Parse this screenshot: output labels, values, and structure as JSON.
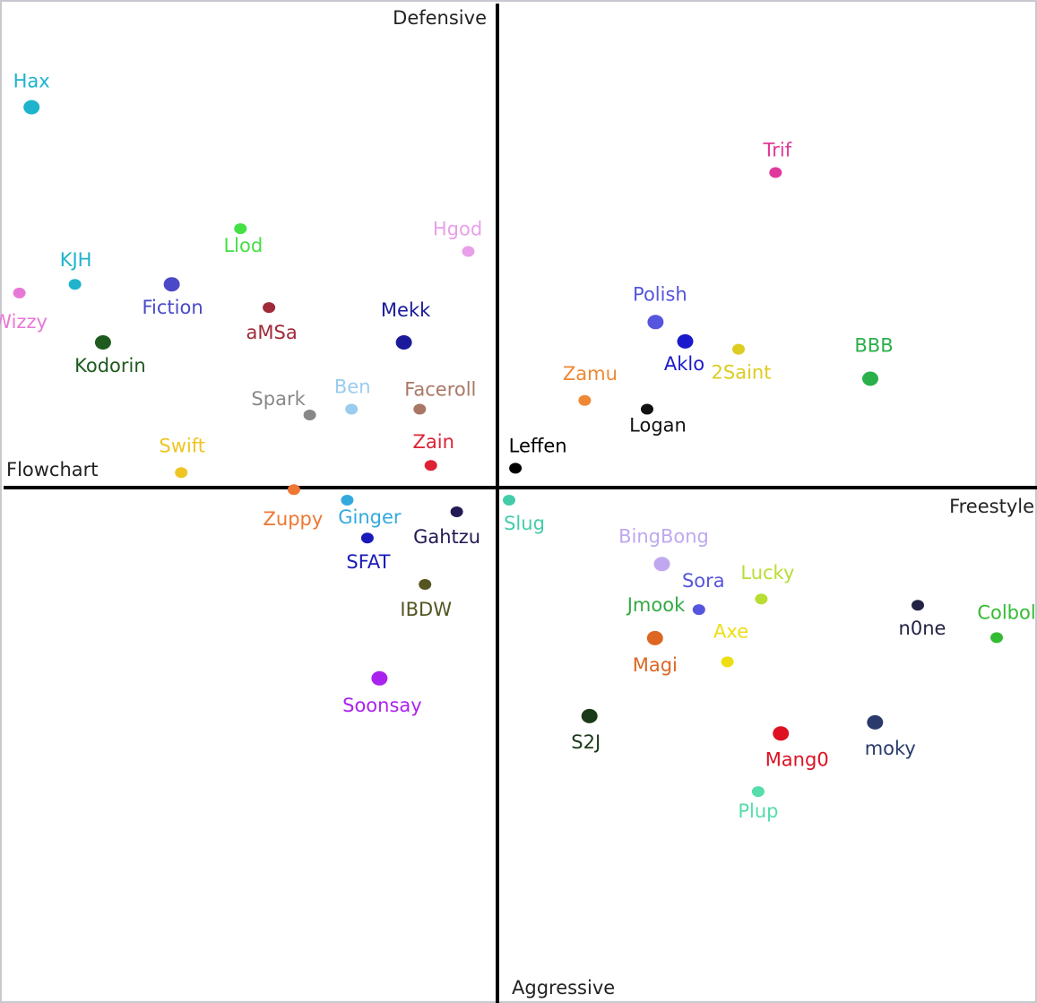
{
  "chart_data": {
    "type": "scatter",
    "title": "",
    "xlabel": "",
    "ylabel": "",
    "axes": {
      "x_negative": "Flowchart",
      "x_positive": "Freestyle",
      "y_positive": "Defensive",
      "y_negative": "Aggressive"
    },
    "xlim": [
      -1,
      1
    ],
    "ylim": [
      -1,
      1
    ],
    "grid": false,
    "points": [
      {
        "label": "Hax",
        "x": -0.881,
        "y": 0.786,
        "color": "#1fb3cc"
      },
      {
        "label": "Trif",
        "x": 0.526,
        "y": 0.651,
        "color": "#e0389a"
      },
      {
        "label": "Llod",
        "x": -0.486,
        "y": 0.535,
        "color": "#44e044"
      },
      {
        "label": "Hgod",
        "x": -0.055,
        "y": 0.488,
        "color": "#e8a0e8"
      },
      {
        "label": "KJH",
        "x": -0.799,
        "y": 0.42,
        "color": "#1fb3cc"
      },
      {
        "label": "Wizzy",
        "x": -0.904,
        "y": 0.402,
        "color": "#e878d8"
      },
      {
        "label": "Fiction",
        "x": -0.616,
        "y": 0.42,
        "color": "#4a4ac8"
      },
      {
        "label": "aMSa",
        "x": -0.432,
        "y": 0.372,
        "color": "#a02a3a"
      },
      {
        "label": "Mekk",
        "x": -0.177,
        "y": 0.3,
        "color": "#1a1a9a"
      },
      {
        "label": "Kodorin",
        "x": -0.746,
        "y": 0.3,
        "color": "#1e5a1e"
      },
      {
        "label": "Polish",
        "x": 0.299,
        "y": 0.342,
        "color": "#5555dd"
      },
      {
        "label": "Aklo",
        "x": 0.355,
        "y": 0.302,
        "color": "#1a1acc"
      },
      {
        "label": "2Saint",
        "x": 0.456,
        "y": 0.286,
        "color": "#ddcc22"
      },
      {
        "label": "BBB",
        "x": 0.705,
        "y": 0.225,
        "color": "#2ab04a"
      },
      {
        "label": "Zamu",
        "x": 0.165,
        "y": 0.18,
        "color": "#ee8833"
      },
      {
        "label": "Logan",
        "x": 0.283,
        "y": 0.162,
        "color": "#111111"
      },
      {
        "label": "Spark",
        "x": -0.355,
        "y": 0.15,
        "color": "#888888"
      },
      {
        "label": "Ben",
        "x": -0.276,
        "y": 0.162,
        "color": "#99ccee"
      },
      {
        "label": "Faceroll",
        "x": -0.147,
        "y": 0.162,
        "color": "#aa7766"
      },
      {
        "label": "Zain",
        "x": -0.126,
        "y": 0.046,
        "color": "#dd2233"
      },
      {
        "label": "Swift",
        "x": -0.598,
        "y": 0.031,
        "color": "#eec522"
      },
      {
        "label": "Leffen",
        "x": 0.034,
        "y": 0.04,
        "color": "#000000"
      },
      {
        "label": "Zuppy",
        "x": -0.385,
        "y": -0.004,
        "color": "#ee7733"
      },
      {
        "label": "Ginger",
        "x": -0.284,
        "y": -0.026,
        "color": "#33aadd"
      },
      {
        "label": "Gahtzu",
        "x": -0.077,
        "y": -0.05,
        "color": "#221a55"
      },
      {
        "label": "SFAT",
        "x": -0.246,
        "y": -0.104,
        "color": "#1a1abb"
      },
      {
        "label": "Slug",
        "x": 0.022,
        "y": -0.026,
        "color": "#44ccaa"
      },
      {
        "label": "BingBong",
        "x": 0.311,
        "y": -0.158,
        "color": "#c0a8f0"
      },
      {
        "label": "Lucky",
        "x": 0.499,
        "y": -0.23,
        "color": "#b8dd33"
      },
      {
        "label": "Sora",
        "x": 0.381,
        "y": -0.252,
        "color": "#5555dd"
      },
      {
        "label": "IBDW",
        "x": -0.137,
        "y": -0.2,
        "color": "#555522"
      },
      {
        "label": "n0ne",
        "x": 0.795,
        "y": -0.243,
        "color": "#222244"
      },
      {
        "label": "Colbol",
        "x": 0.944,
        "y": -0.31,
        "color": "#33bb33"
      },
      {
        "label": "Jmook",
        "x": 0.3,
        "y": -0.311,
        "color": "#33aa44"
      },
      {
        "label": "Magi",
        "x": 0.298,
        "y": -0.311,
        "color": "#dd6622"
      },
      {
        "label": "Axe",
        "x": 0.435,
        "y": -0.36,
        "color": "#eedd11"
      },
      {
        "label": "Soonsay",
        "x": -0.223,
        "y": -0.394,
        "color": "#aa22ee"
      },
      {
        "label": "S2J",
        "x": 0.174,
        "y": -0.472,
        "color": "#1a3a1a"
      },
      {
        "label": "moky",
        "x": 0.714,
        "y": -0.485,
        "color": "#2a3a6a"
      },
      {
        "label": "Mang0",
        "x": 0.536,
        "y": -0.508,
        "color": "#dd1122"
      },
      {
        "label": "Plup",
        "x": 0.493,
        "y": -0.628,
        "color": "#55ddaa"
      }
    ]
  }
}
